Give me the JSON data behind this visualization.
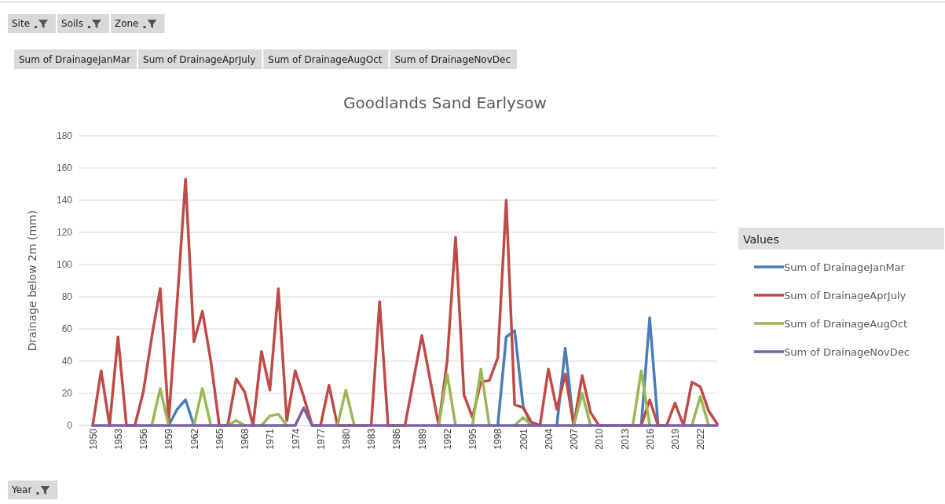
{
  "chart_data": {
    "type": "line",
    "title": "Goodlands Sand Earlysow",
    "ylabel": "Drainage below 2m (mm)",
    "legend_title": "Values",
    "legend": "right",
    "grid": "y",
    "marker": "none",
    "line_style": "solid",
    "annotations": [
      "Site",
      "Soils",
      "Zone",
      "Year"
    ],
    "categories": [
      "1950",
      null,
      null,
      "1953",
      null,
      null,
      "1956",
      null,
      null,
      "1959",
      null,
      null,
      "1962",
      null,
      null,
      "1965",
      null,
      null,
      "1968",
      null,
      null,
      "1971",
      null,
      null,
      "1974",
      null,
      null,
      "1977",
      null,
      null,
      "1980",
      null,
      null,
      "1983",
      null,
      null,
      "1986",
      null,
      null,
      "1989",
      null,
      null,
      "1992",
      null,
      null,
      "1995",
      null,
      null,
      "1998",
      null,
      null,
      "2001",
      null,
      null,
      "2004",
      null,
      null,
      "2007",
      null,
      null,
      "2010",
      null,
      null,
      "2013",
      null,
      null,
      "2016",
      null,
      null,
      "2019",
      null,
      null,
      "2022",
      null,
      null
    ],
    "ylim": [
      0,
      180
    ],
    "yticks": [
      0,
      20,
      40,
      60,
      80,
      100,
      120,
      140,
      160,
      180
    ],
    "series": [
      {
        "name": "Sum of DrainageJanMar",
        "color": "#4a7ebb",
        "values": [
          null,
          null,
          null,
          null,
          null,
          null,
          null,
          null,
          null,
          0,
          10,
          16,
          0,
          null,
          null,
          null,
          null,
          null,
          null,
          null,
          null,
          null,
          null,
          null,
          null,
          null,
          null,
          null,
          null,
          null,
          null,
          null,
          null,
          null,
          null,
          null,
          null,
          null,
          null,
          null,
          null,
          null,
          null,
          null,
          null,
          null,
          null,
          null,
          0,
          55,
          59,
          12,
          0,
          null,
          null,
          0,
          48,
          0,
          null,
          null,
          null,
          null,
          null,
          null,
          null,
          0,
          67,
          0,
          null,
          null,
          null,
          null,
          null,
          null,
          null
        ]
      },
      {
        "name": "Sum of DrainageAprJuly",
        "color": "#be4b48",
        "values": [
          0,
          34,
          0,
          55,
          0,
          0,
          21,
          55,
          85,
          3,
          76,
          153,
          52,
          71,
          40,
          0,
          0,
          29,
          21,
          0,
          46,
          22,
          85,
          3,
          34,
          18,
          0,
          0,
          25,
          0,
          0,
          0,
          0,
          0,
          77,
          0,
          0,
          0,
          28,
          56,
          28,
          0,
          40,
          117,
          19,
          5,
          27,
          28,
          42,
          140,
          13,
          11,
          2,
          0,
          35,
          10,
          32,
          0,
          31,
          8,
          0,
          0,
          0,
          0,
          0,
          0,
          16,
          0,
          0,
          14,
          0,
          27,
          24,
          9,
          1
        ]
      },
      {
        "name": "Sum of DrainageAugOct",
        "color": "#98b954",
        "values": [
          null,
          null,
          null,
          null,
          null,
          null,
          null,
          0,
          23,
          0,
          null,
          null,
          0,
          23,
          0,
          null,
          0,
          3,
          0,
          null,
          0,
          6,
          7,
          0,
          null,
          null,
          null,
          null,
          null,
          0,
          22,
          0,
          null,
          null,
          null,
          null,
          null,
          null,
          null,
          null,
          null,
          0,
          32,
          0,
          null,
          0,
          35,
          0,
          null,
          null,
          0,
          5,
          0,
          null,
          null,
          null,
          null,
          0,
          20,
          0,
          null,
          null,
          null,
          null,
          0,
          34,
          0,
          null,
          null,
          null,
          null,
          0,
          18,
          0,
          null
        ]
      },
      {
        "name": "Sum of DrainageNovDec",
        "color": "#7d60a0",
        "values": [
          0,
          0,
          0,
          0,
          0,
          0,
          0,
          0,
          0,
          0,
          0,
          0,
          0,
          0,
          0,
          0,
          0,
          0,
          0,
          0,
          0,
          0,
          0,
          0,
          0,
          11,
          0,
          0,
          0,
          0,
          0,
          0,
          0,
          0,
          0,
          0,
          0,
          0,
          0,
          0,
          0,
          0,
          0,
          0,
          0,
          0,
          0,
          0,
          0,
          0,
          0,
          0,
          0,
          0,
          0,
          0,
          0,
          0,
          0,
          0,
          0,
          0,
          0,
          0,
          0,
          0,
          0,
          0,
          0,
          0,
          0,
          0,
          0,
          0,
          0
        ]
      }
    ]
  }
}
